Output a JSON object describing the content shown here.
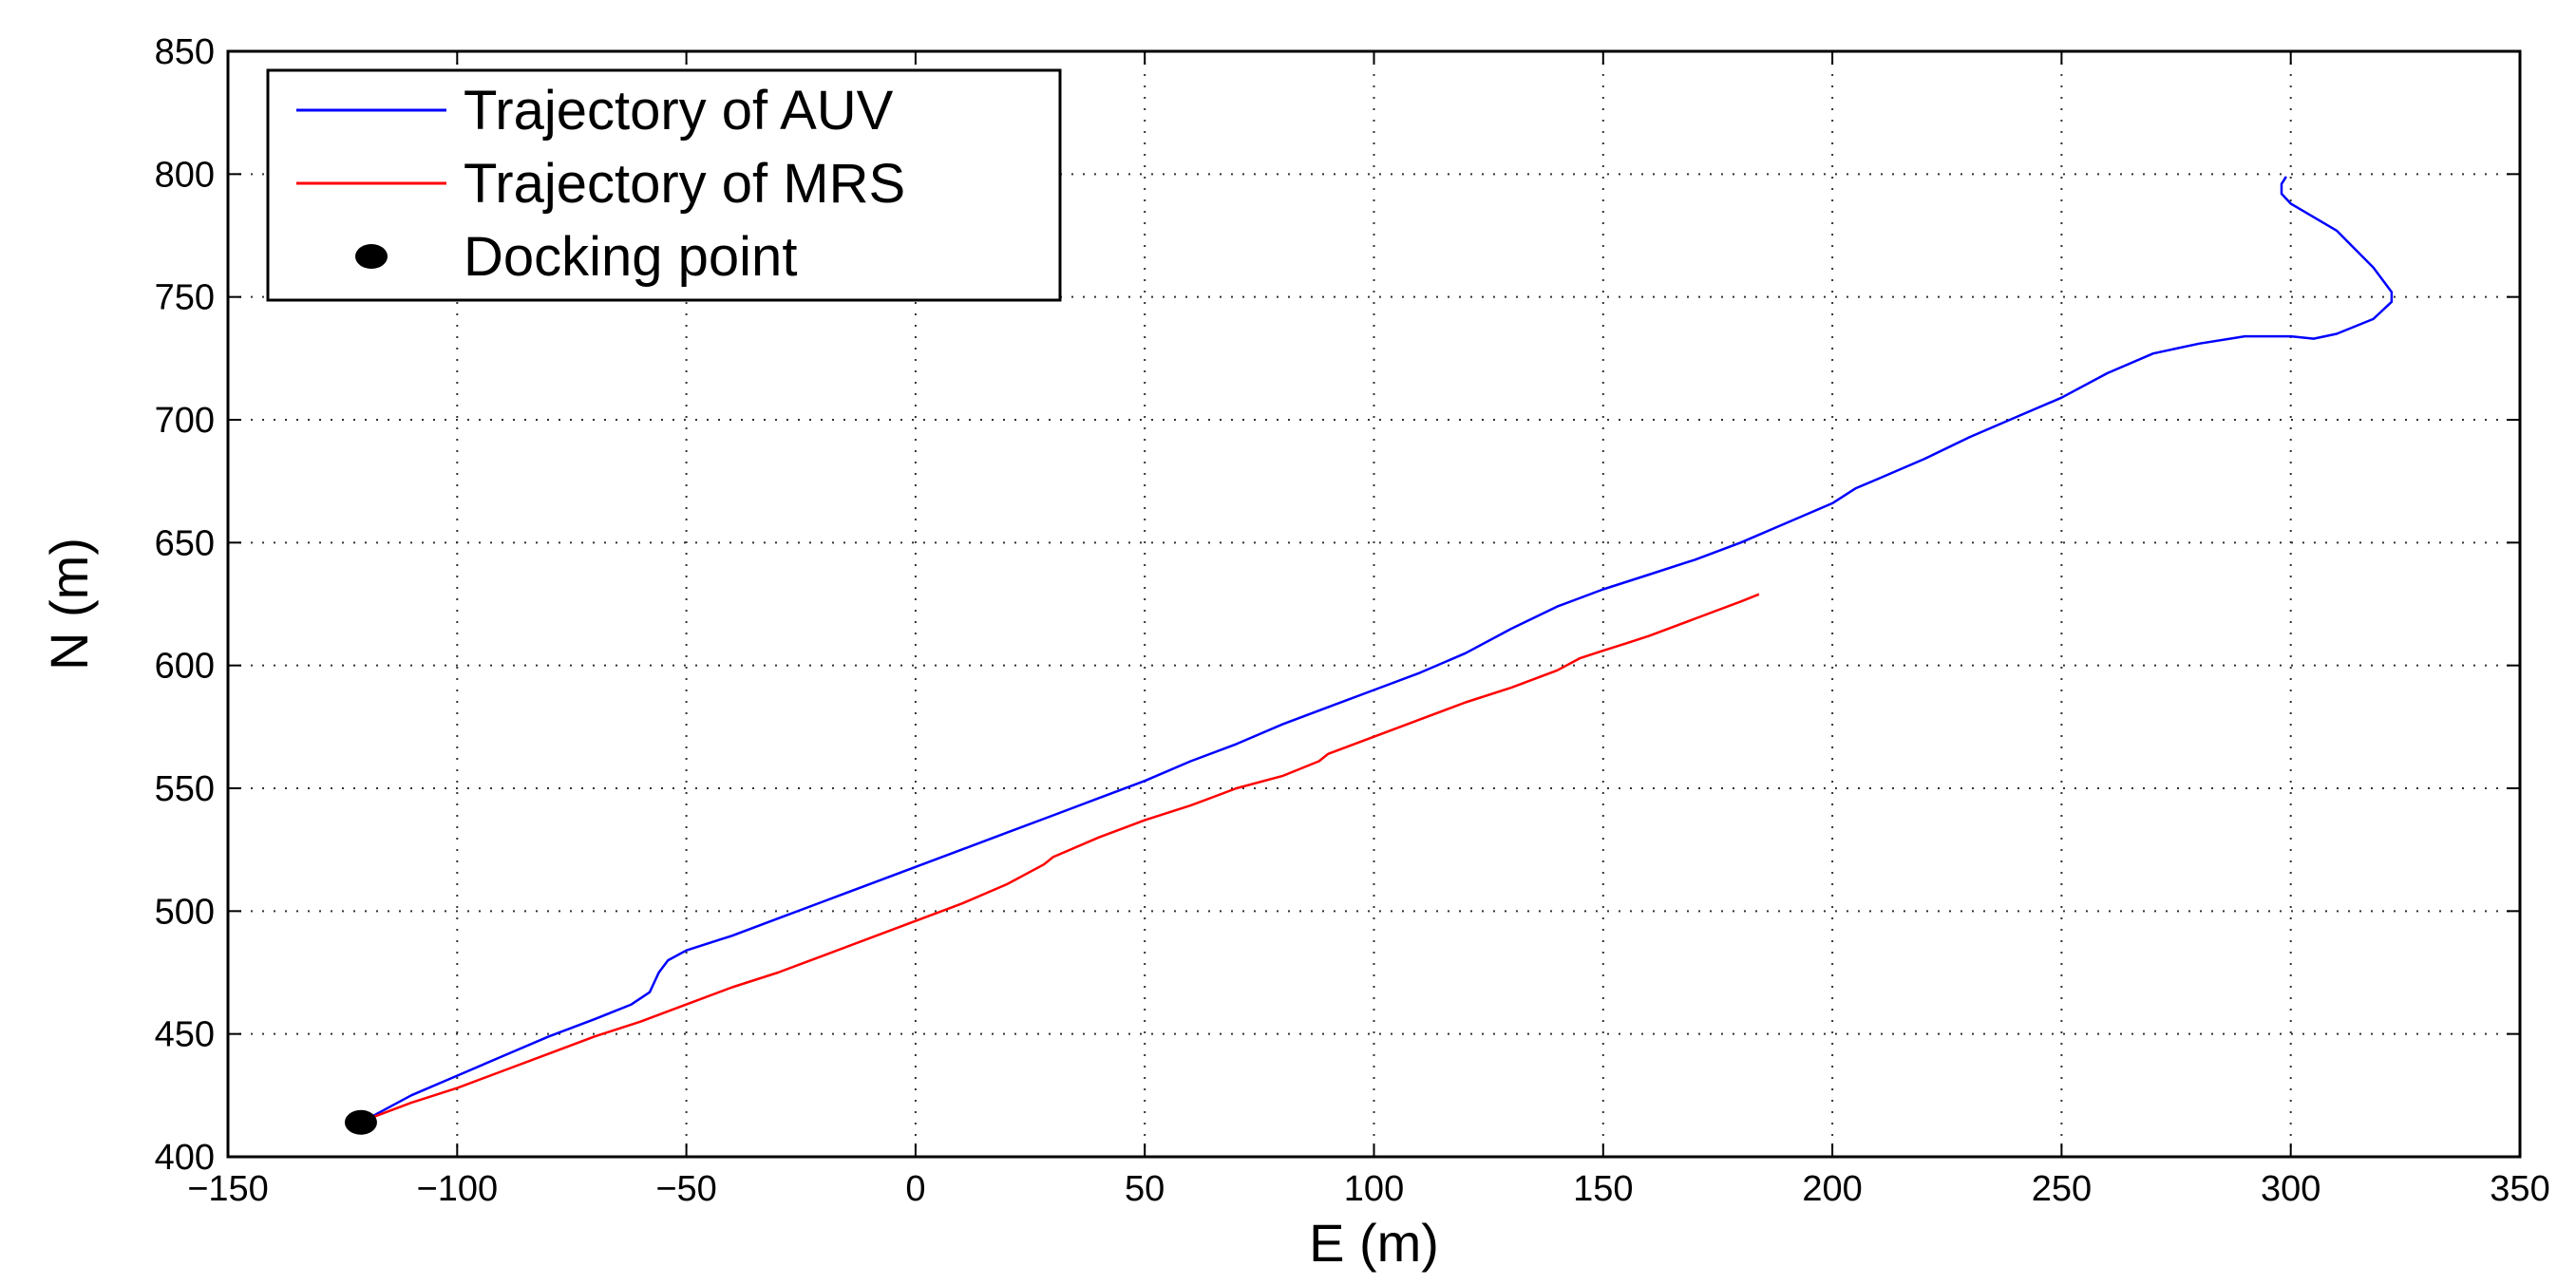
{
  "chart_data": {
    "type": "line",
    "title": "",
    "xlabel": "E (m)",
    "ylabel": "N (m)",
    "xlim": [
      -150,
      350
    ],
    "ylim": [
      400,
      850
    ],
    "xticks": [
      -150,
      -100,
      -50,
      0,
      50,
      100,
      150,
      200,
      250,
      300,
      350
    ],
    "yticks": [
      400,
      450,
      500,
      550,
      600,
      650,
      700,
      750,
      800,
      850
    ],
    "xtick_labels": [
      "−150",
      "−100",
      "−50",
      "0",
      "50",
      "100",
      "150",
      "200",
      "250",
      "300",
      "350"
    ],
    "ytick_labels": [
      "400",
      "450",
      "500",
      "550",
      "600",
      "650",
      "700",
      "750",
      "800",
      "850"
    ],
    "grid": true,
    "legend_position": "top-left",
    "series": [
      {
        "name": "Trajectory of AUV",
        "color": "#0000ff",
        "x": [
          -120,
          -110,
          -100,
          -90,
          -80,
          -70,
          -62,
          -58,
          -56,
          -54,
          -50,
          -40,
          -30,
          -20,
          -10,
          0,
          10,
          20,
          30,
          40,
          50,
          60,
          70,
          80,
          90,
          100,
          110,
          120,
          130,
          140,
          150,
          160,
          170,
          180,
          190,
          200,
          205,
          210,
          220,
          230,
          240,
          250,
          260,
          270,
          280,
          290,
          300,
          305,
          310,
          318,
          322,
          322,
          318,
          310,
          300,
          298,
          298,
          299
        ],
        "y": [
          415,
          425,
          433,
          441,
          449,
          456,
          462,
          467,
          475,
          480,
          484,
          490,
          497,
          504,
          511,
          518,
          525,
          532,
          539,
          546,
          553,
          561,
          568,
          576,
          583,
          590,
          597,
          605,
          615,
          624,
          631,
          637,
          643,
          650,
          658,
          666,
          672,
          676,
          684,
          693,
          701,
          709,
          719,
          727,
          731,
          734,
          734,
          733,
          735,
          741,
          748,
          752,
          762,
          777,
          788,
          792,
          796,
          799
        ]
      },
      {
        "name": "Trajectory of MRS",
        "color": "#ff0000",
        "x": [
          -120,
          -110,
          -100,
          -90,
          -80,
          -70,
          -60,
          -50,
          -40,
          -30,
          -20,
          -10,
          0,
          10,
          20,
          28,
          30,
          40,
          50,
          60,
          70,
          80,
          88,
          90,
          100,
          110,
          120,
          130,
          140,
          145,
          150,
          155,
          160,
          170,
          180,
          184
        ],
        "y": [
          415,
          422,
          428,
          435,
          442,
          449,
          455,
          462,
          469,
          475,
          482,
          489,
          496,
          503,
          511,
          519,
          522,
          530,
          537,
          543,
          550,
          555,
          561,
          564,
          571,
          578,
          585,
          591,
          598,
          603,
          606,
          609,
          612,
          619,
          626,
          629
        ]
      }
    ],
    "points": [
      {
        "name": "Docking point",
        "x": -121,
        "y": 414,
        "color": "#000000"
      }
    ]
  }
}
